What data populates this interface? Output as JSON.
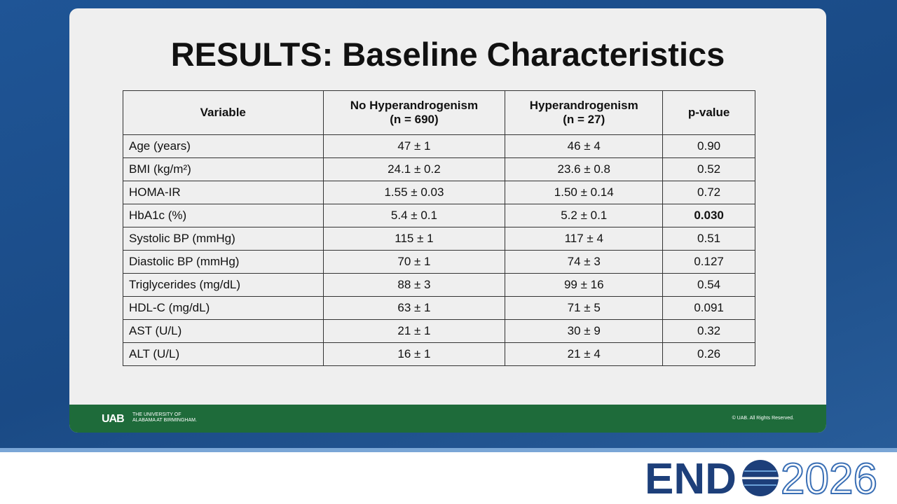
{
  "slide": {
    "title": "RESULTS: Baseline Characteristics",
    "table": {
      "header": [
        {
          "label": "Variable"
        },
        {
          "label": "No Hyperandrogenism",
          "n": "(n = 690)"
        },
        {
          "label": "Hyperandrogenism",
          "n": "(n = 27)"
        },
        {
          "label": "p-value"
        }
      ],
      "rows": [
        [
          "Age (years)",
          "47 ± 1",
          "46 ± 4",
          "0.90"
        ],
        [
          "BMI (kg/m²)",
          "24.1 ± 0.2",
          "23.6 ± 0.8",
          "0.52"
        ],
        [
          "HOMA-IR",
          "1.55 ± 0.03",
          "1.50 ± 0.14",
          "0.72"
        ],
        [
          "HbA1c (%)",
          "5.4 ± 0.1",
          "5.2 ± 0.1",
          "0.030"
        ],
        [
          "Systolic BP (mmHg)",
          "115 ± 1",
          "117 ± 4",
          "0.51"
        ],
        [
          "Diastolic BP (mmHg)",
          "70 ± 1",
          "74 ± 3",
          "0.127"
        ],
        [
          "Triglycerides (mg/dL)",
          "88 ± 3",
          "99 ± 16",
          "0.54"
        ],
        [
          "HDL-C (mg/dL)",
          "63 ± 1",
          "71 ± 5",
          "0.091"
        ],
        [
          "AST (U/L)",
          "21 ± 1",
          "30 ± 9",
          "0.32"
        ],
        [
          "ALT (U/L)",
          "16 ± 1",
          "21 ± 4",
          "0.26"
        ]
      ]
    },
    "footer": {
      "logo": "UAB",
      "university": [
        "THE UNIVERSITY OF",
        "ALABAMA AT BIRMINGHAM."
      ],
      "copyright": "© UAB. All Rights Reserved."
    }
  },
  "banner": {
    "brand": "END",
    "year": "2026"
  }
}
